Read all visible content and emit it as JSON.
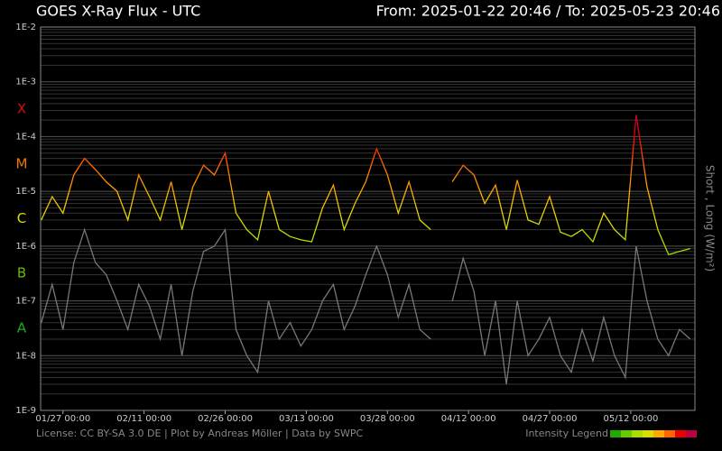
{
  "chart_data": {
    "type": "line",
    "title": "GOES X-Ray Flux - UTC",
    "subtitle": "From: 2025-01-22 20:46  /  To: 2025-05-23 20:46",
    "y_label": "Short , Long (W/m²)",
    "footer": "License: CC BY-SA 3.0 DE | Plot by Andreas Möller | Data by SWPC",
    "legend_title": "Intensity Legend",
    "log_scale": true,
    "grid": true,
    "x": [
      "2025-01-23",
      "2025-01-25",
      "2025-01-27",
      "2025-01-29",
      "2025-01-31",
      "2025-02-02",
      "2025-02-04",
      "2025-02-06",
      "2025-02-08",
      "2025-02-10",
      "2025-02-12",
      "2025-02-14",
      "2025-02-16",
      "2025-02-18",
      "2025-02-20",
      "2025-02-22",
      "2025-02-24",
      "2025-02-26",
      "2025-02-28",
      "2025-03-02",
      "2025-03-04",
      "2025-03-06",
      "2025-03-08",
      "2025-03-10",
      "2025-03-12",
      "2025-03-14",
      "2025-03-16",
      "2025-03-18",
      "2025-03-20",
      "2025-03-22",
      "2025-03-24",
      "2025-03-26",
      "2025-03-28",
      "2025-03-30",
      "2025-04-01",
      "2025-04-03",
      "2025-04-05",
      "2025-04-07",
      "2025-04-09",
      "2025-04-11",
      "2025-04-13",
      "2025-04-15",
      "2025-04-17",
      "2025-04-19",
      "2025-04-21",
      "2025-04-23",
      "2025-04-25",
      "2025-04-27",
      "2025-04-29",
      "2025-05-01",
      "2025-05-03",
      "2025-05-05",
      "2025-05-07",
      "2025-05-09",
      "2025-05-11",
      "2025-05-13",
      "2025-05-15",
      "2025-05-17",
      "2025-05-19",
      "2025-05-21",
      "2025-05-23"
    ],
    "series": [
      {
        "color": "gradient",
        "values": [
          3e-06,
          8e-06,
          4e-06,
          2e-05,
          4e-05,
          2.5e-05,
          1.5e-05,
          1e-05,
          3e-06,
          2e-05,
          8e-06,
          3e-06,
          1.5e-05,
          2e-06,
          1.2e-05,
          3e-05,
          2e-05,
          5e-05,
          4e-06,
          2e-06,
          1.3e-06,
          1e-05,
          2e-06,
          1.5e-06,
          1.3e-06,
          1.2e-06,
          5e-06,
          1.3e-05,
          2e-06,
          6e-06,
          1.5e-05,
          6e-05,
          2e-05,
          4e-06,
          1.5e-05,
          3e-06,
          2e-06,
          null,
          1.5e-05,
          3e-05,
          2e-05,
          6e-06,
          1.3e-05,
          2e-06,
          1.6e-05,
          3e-06,
          2.5e-06,
          8e-06,
          1.8e-06,
          1.5e-06,
          2e-06,
          1.2e-06,
          4e-06,
          2e-06,
          1.3e-06,
          0.00025,
          1.2e-05,
          2e-06,
          7e-07,
          8e-07,
          9e-07
        ]
      },
      {
        "color": "#777777",
        "values": [
          4e-08,
          2e-07,
          3e-08,
          5e-07,
          2e-06,
          5e-07,
          3e-07,
          1e-07,
          3e-08,
          2e-07,
          8e-08,
          2e-08,
          2e-07,
          1e-08,
          1.5e-07,
          8e-07,
          1e-06,
          2e-06,
          3e-08,
          1e-08,
          5e-09,
          1e-07,
          2e-08,
          4e-08,
          1.5e-08,
          3e-08,
          1e-07,
          2e-07,
          3e-08,
          8e-08,
          3e-07,
          1e-06,
          3e-07,
          5e-08,
          2e-07,
          3e-08,
          2e-08,
          null,
          1e-07,
          6e-07,
          1.5e-07,
          1e-08,
          1e-07,
          3e-09,
          1e-07,
          1e-08,
          2e-08,
          5e-08,
          1e-08,
          5e-09,
          3e-08,
          8e-09,
          5e-08,
          1e-08,
          4e-09,
          1e-06,
          1e-07,
          2e-08,
          1e-08,
          3e-08,
          2e-08
        ]
      }
    ],
    "intensity_colors": [
      {
        "value": 1e-07,
        "color": "#22aa00"
      },
      {
        "value": 3e-07,
        "color": "#66cc00"
      },
      {
        "value": 1e-06,
        "color": "#aadd00"
      },
      {
        "value": 3e-06,
        "color": "#dddd00"
      },
      {
        "value": 1e-05,
        "color": "#ffaa00"
      },
      {
        "value": 3e-05,
        "color": "#ff6600"
      },
      {
        "value": 0.0001,
        "color": "#ee0000"
      },
      {
        "value": 0.0003,
        "color": "#bb0044"
      }
    ],
    "classes": [
      {
        "label": "X",
        "color": "#cc1111"
      },
      {
        "label": "M",
        "color": "#ee7700"
      },
      {
        "label": "C",
        "color": "#dddd00"
      },
      {
        "label": "B",
        "color": "#66bb00"
      },
      {
        "label": "A",
        "color": "#22aa22"
      }
    ],
    "xlim": [
      "2025-01-22 20:46",
      "2025-05-23 20:46"
    ],
    "xticks": [
      {
        "value": "2025-01-27 00:00",
        "label": "01/27 00:00"
      },
      {
        "value": "2025-02-11 00:00",
        "label": "02/11 00:00"
      },
      {
        "value": "2025-02-26 00:00",
        "label": "02/26 00:00"
      },
      {
        "value": "2025-03-13 00:00",
        "label": "03/13 00:00"
      },
      {
        "value": "2025-03-28 00:00",
        "label": "03/28 00:00"
      },
      {
        "value": "2025-04-12 00:00",
        "label": "04/12 00:00"
      },
      {
        "value": "2025-04-27 00:00",
        "label": "04/27 00:00"
      },
      {
        "value": "2025-05-12 00:00",
        "label": "05/12 00:00"
      }
    ],
    "ylim": [
      1e-09,
      0.01
    ],
    "yticks": [
      {
        "value": 0.01,
        "label": "1E-2"
      },
      {
        "value": 0.001,
        "label": "1E-3"
      },
      {
        "value": 0.0001,
        "label": "1E-4"
      },
      {
        "value": 1e-05,
        "label": "1E-5"
      },
      {
        "value": 1e-06,
        "label": "1E-6"
      },
      {
        "value": 1e-07,
        "label": "1E-7"
      },
      {
        "value": 1e-08,
        "label": "1E-8"
      },
      {
        "value": 1e-09,
        "label": "1E-9"
      }
    ]
  }
}
